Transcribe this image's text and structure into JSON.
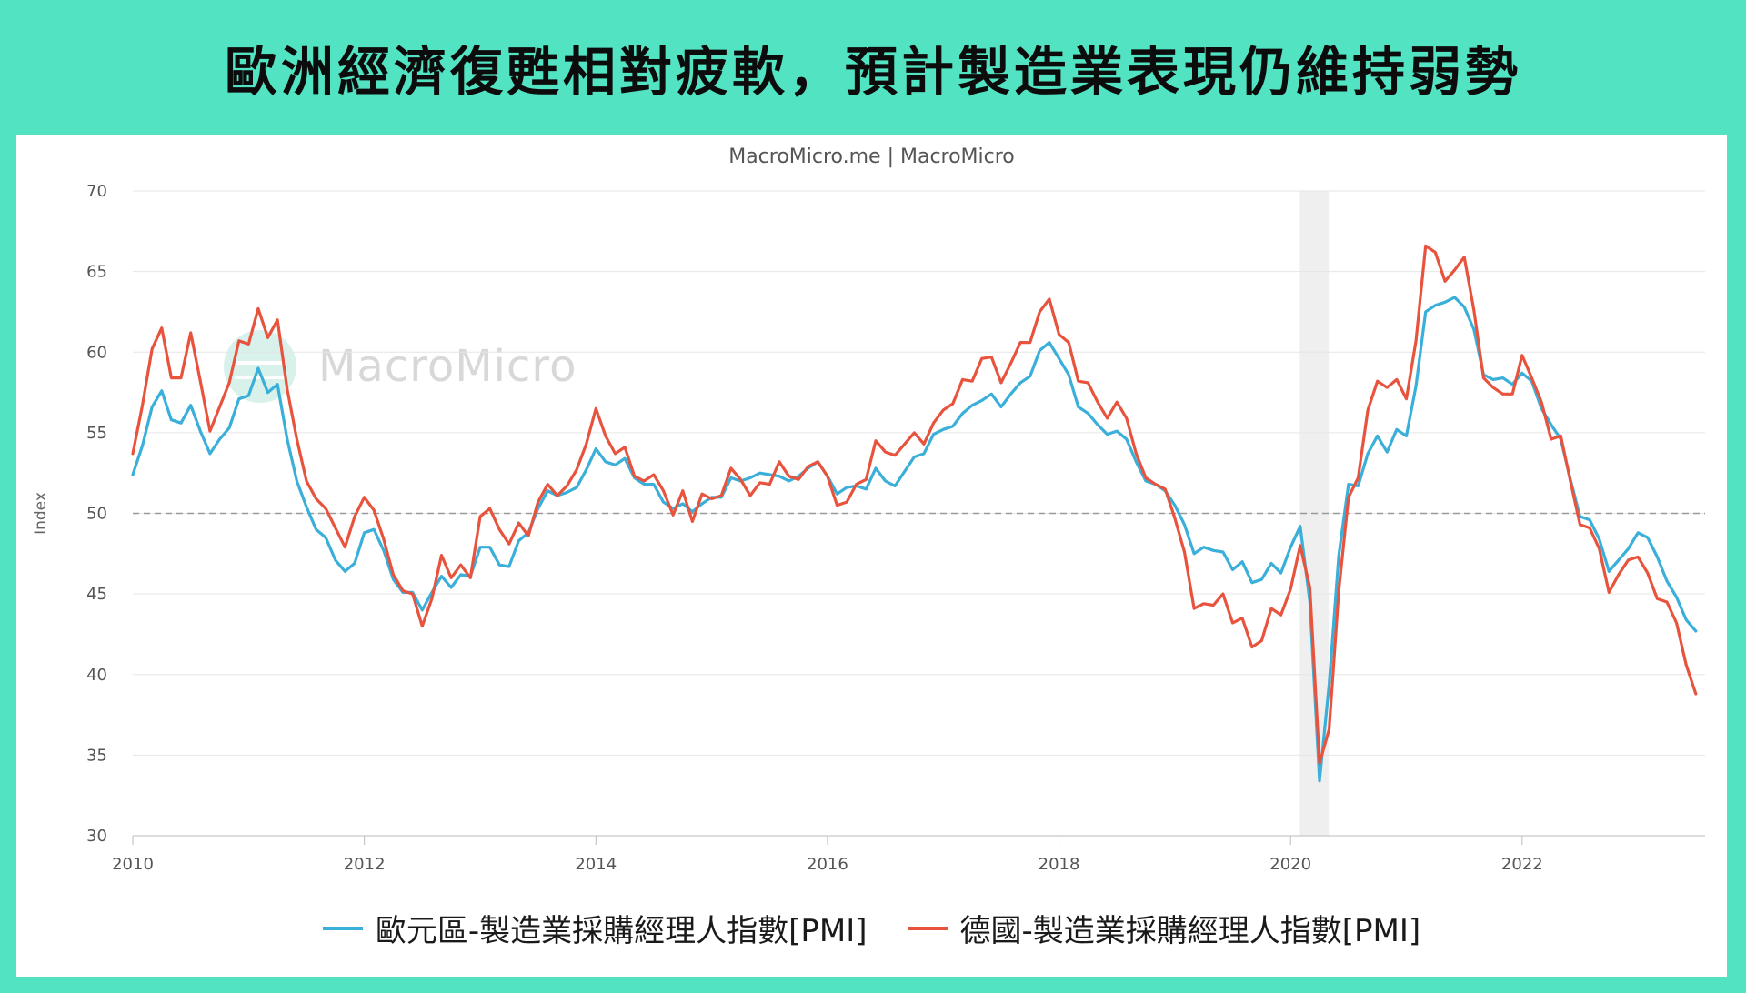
{
  "title": "歐洲經濟復甦相對疲軟，預計製造業表現仍維持弱勢",
  "credit": "MacroMicro.me | MacroMicro",
  "watermark": "MacroMicro",
  "chart_data": {
    "type": "line",
    "ylabel": "Index",
    "xlabel": "",
    "ylim": [
      30,
      70
    ],
    "yticks": [
      30,
      35,
      40,
      45,
      50,
      55,
      60,
      65,
      70
    ],
    "xlim": [
      2010.0,
      2023.58
    ],
    "xticks": [
      2010,
      2012,
      2014,
      2016,
      2018,
      2020,
      2022
    ],
    "reference_line": 50,
    "shaded_range": [
      2020.08,
      2020.33
    ],
    "x_start": 2010.0,
    "x_step_months": 1,
    "series": [
      {
        "name": "歐元區-製造業採購經理人指數[PMI]",
        "color": "#3aafd9",
        "values": [
          52.4,
          54.2,
          56.6,
          57.6,
          55.8,
          55.6,
          56.7,
          55.1,
          53.7,
          54.6,
          55.3,
          57.1,
          57.3,
          59.0,
          57.5,
          58.0,
          54.6,
          52.0,
          50.4,
          49.0,
          48.5,
          47.1,
          46.4,
          46.9,
          48.8,
          49.0,
          47.7,
          45.9,
          45.1,
          45.1,
          44.0,
          45.1,
          46.1,
          45.4,
          46.2,
          46.1,
          47.9,
          47.9,
          46.8,
          46.7,
          48.3,
          48.8,
          50.3,
          51.4,
          51.1,
          51.3,
          51.6,
          52.7,
          54.0,
          53.2,
          53.0,
          53.4,
          52.2,
          51.8,
          51.8,
          50.7,
          50.3,
          50.6,
          50.1,
          50.6,
          51.0,
          51.0,
          52.2,
          52.0,
          52.2,
          52.5,
          52.4,
          52.3,
          52.0,
          52.3,
          52.8,
          53.2,
          52.3,
          51.2,
          51.6,
          51.7,
          51.5,
          52.8,
          52.0,
          51.7,
          52.6,
          53.5,
          53.7,
          54.9,
          55.2,
          55.4,
          56.2,
          56.7,
          57.0,
          57.4,
          56.6,
          57.4,
          58.1,
          58.5,
          60.1,
          60.6,
          59.6,
          58.6,
          56.6,
          56.2,
          55.5,
          54.9,
          55.1,
          54.6,
          53.2,
          52.0,
          51.8,
          51.4,
          50.5,
          49.3,
          47.5,
          47.9,
          47.7,
          47.6,
          46.5,
          47.0,
          45.7,
          45.9,
          46.9,
          46.3,
          47.9,
          49.2,
          44.5,
          33.4,
          39.4,
          47.4,
          51.8,
          51.7,
          53.7,
          54.8,
          53.8,
          55.2,
          54.8,
          57.9,
          62.5,
          62.9,
          63.1,
          63.4,
          62.8,
          61.4,
          58.6,
          58.3,
          58.4,
          58.0,
          58.7,
          58.2,
          56.5,
          55.5,
          54.6,
          52.1,
          49.8,
          49.6,
          48.4,
          46.4,
          47.1,
          47.8,
          48.8,
          48.5,
          47.3,
          45.8,
          44.8,
          43.4,
          42.7
        ]
      },
      {
        "name": "德國-製造業採購經理人指數[PMI]",
        "color": "#e8533e",
        "values": [
          53.7,
          56.7,
          60.2,
          61.5,
          58.4,
          58.4,
          61.2,
          58.2,
          55.1,
          56.6,
          58.1,
          60.7,
          60.5,
          62.7,
          60.9,
          62.0,
          57.7,
          54.6,
          52.0,
          50.9,
          50.3,
          49.1,
          47.9,
          49.8,
          51.0,
          50.2,
          48.4,
          46.2,
          45.2,
          45.0,
          43.0,
          44.7,
          47.4,
          46.0,
          46.8,
          46.0,
          49.8,
          50.3,
          49.0,
          48.1,
          49.4,
          48.6,
          50.7,
          51.8,
          51.1,
          51.7,
          52.7,
          54.3,
          56.5,
          54.8,
          53.7,
          54.1,
          52.3,
          52.0,
          52.4,
          51.4,
          49.9,
          51.4,
          49.5,
          51.2,
          50.9,
          51.1,
          52.8,
          52.1,
          51.1,
          51.9,
          51.8,
          53.2,
          52.3,
          52.1,
          52.9,
          53.2,
          52.3,
          50.5,
          50.7,
          51.8,
          52.1,
          54.5,
          53.8,
          53.6,
          54.3,
          55.0,
          54.3,
          55.6,
          56.4,
          56.8,
          58.3,
          58.2,
          59.6,
          59.7,
          58.1,
          59.3,
          60.6,
          60.6,
          62.5,
          63.3,
          61.1,
          60.6,
          58.2,
          58.1,
          56.9,
          55.9,
          56.9,
          55.9,
          53.7,
          52.2,
          51.8,
          51.5,
          49.7,
          47.6,
          44.1,
          44.4,
          44.3,
          45.0,
          43.2,
          43.5,
          41.7,
          42.1,
          44.1,
          43.7,
          45.3,
          48.0,
          45.4,
          34.5,
          36.6,
          45.2,
          51.0,
          52.2,
          56.4,
          58.2,
          57.8,
          58.3,
          57.1,
          60.7,
          66.6,
          66.2,
          64.4,
          65.1,
          65.9,
          62.6,
          58.4,
          57.8,
          57.4,
          57.4,
          59.8,
          58.4,
          56.9,
          54.6,
          54.8,
          52.0,
          49.3,
          49.1,
          47.8,
          45.1,
          46.2,
          47.1,
          47.3,
          46.3,
          44.7,
          44.5,
          43.2,
          40.6,
          38.8
        ]
      }
    ]
  }
}
